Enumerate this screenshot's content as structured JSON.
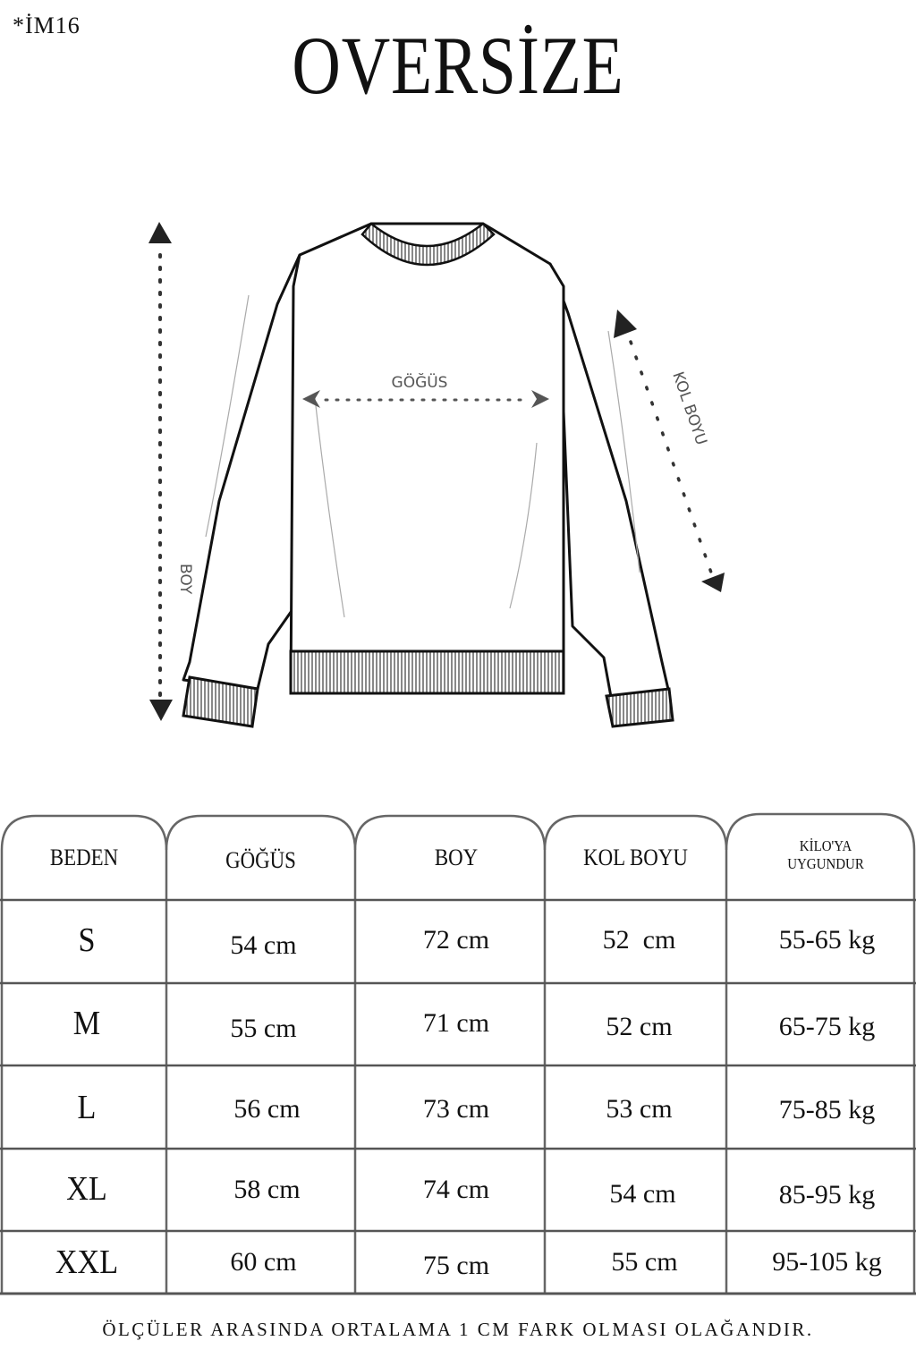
{
  "code": "*İM16",
  "title": "OVERSİZE",
  "diagram": {
    "chest_label": "GÖĞÜS",
    "length_label": "BOY",
    "sleeve_label": "KOL BOYU"
  },
  "table": {
    "headers": [
      "BEDEN",
      "GÖĞÜS",
      "BOY",
      "KOL BOYU",
      "KİLO'YA UYGUNDUR"
    ],
    "header_kilo_lines": [
      "KİLO'YA",
      "UYGUNDUR"
    ],
    "rows": [
      [
        "S",
        "54 cm",
        "72 cm",
        "52  cm",
        "55-65 kg"
      ],
      [
        "M",
        "55 cm",
        "71 cm",
        "52 cm",
        "65-75 kg"
      ],
      [
        "L",
        "56 cm",
        "73 cm",
        "53 cm",
        "75-85 kg"
      ],
      [
        "XL",
        "58 cm",
        "74 cm",
        "54 cm",
        "85-95 kg"
      ],
      [
        "XXL",
        "60 cm",
        "75 cm",
        "55 cm",
        "95-105 kg"
      ]
    ]
  },
  "footer": "ÖLÇÜLER ARASINDA ORTALAMA 1 CM FARK OLMASI OLAĞANDIR."
}
